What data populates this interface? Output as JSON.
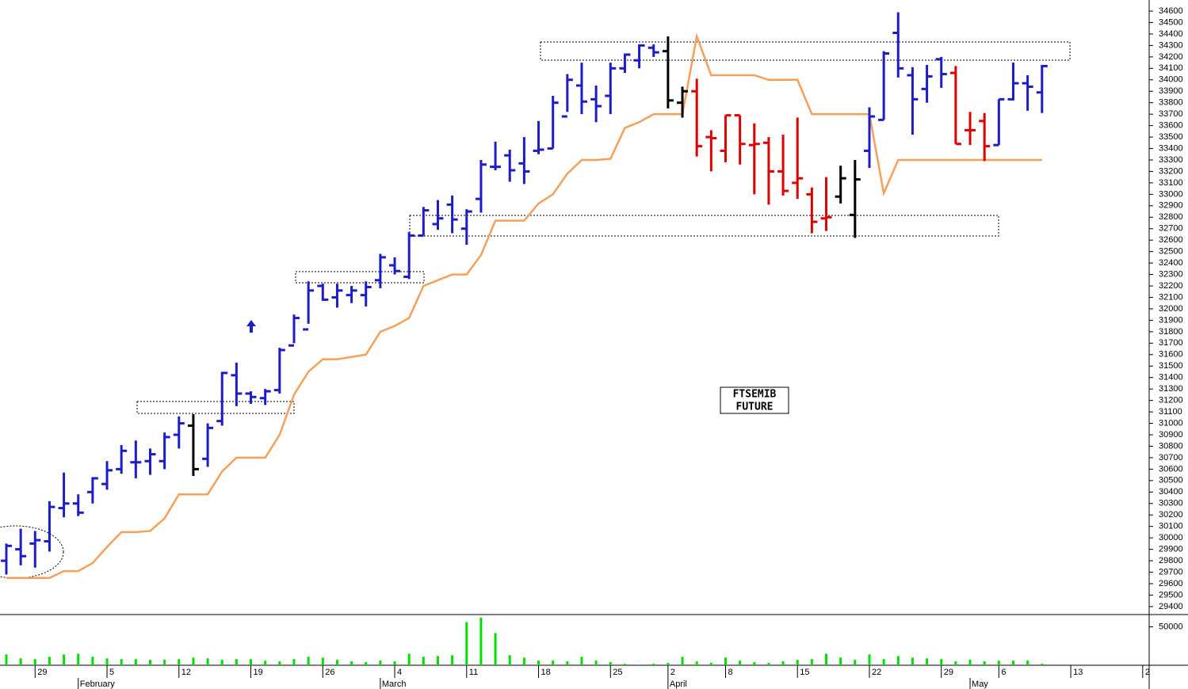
{
  "chart_data": [
    {
      "type": "ohlc",
      "title": "FTSEMIB",
      "subtitle": "FUTURE",
      "categories": [
        null,
        null,
        null,
        null,
        null,
        null,
        null,
        null,
        null,
        null,
        null,
        null,
        null,
        null,
        null,
        null,
        null,
        null,
        null,
        null,
        null,
        null,
        null,
        null,
        null,
        null,
        null,
        null,
        null,
        null,
        null,
        null,
        null,
        null,
        null,
        null,
        null,
        null,
        null,
        null,
        null,
        null,
        null,
        null,
        null,
        null,
        null,
        null,
        null,
        null,
        null,
        null,
        null,
        null,
        null,
        null,
        null,
        null,
        null,
        null,
        null,
        null,
        null,
        null,
        null,
        null,
        null,
        null,
        null,
        null,
        null,
        null,
        null
      ],
      "open": [
        29800,
        29900,
        29950,
        29970,
        30260,
        30300,
        30400,
        30470,
        30600,
        30660,
        30670,
        30670,
        30900,
        30980,
        30690,
        31020,
        31420,
        31260,
        31220,
        31290,
        31680,
        31820,
        32200,
        32100,
        32120,
        32120,
        32250,
        32380,
        32280,
        32640,
        32740,
        32910,
        32700,
        32960,
        33240,
        33340,
        33270,
        33380,
        33400,
        33680,
        33950,
        33830,
        33860,
        34100,
        34170,
        34280,
        34250,
        33800,
        33900,
        33500,
        33380,
        33690,
        33430,
        33450,
        33200,
        33100,
        33000,
        32790,
        32980,
        32820,
        33380,
        33650,
        34410,
        34040,
        33920,
        34180,
        34060,
        33560,
        33640,
        33430,
        33830,
        33970,
        33890
      ],
      "high": [
        29950,
        30080,
        30060,
        30320,
        30570,
        30380,
        30530,
        30670,
        30810,
        30850,
        30780,
        30920,
        31060,
        31080,
        31000,
        31450,
        31530,
        31280,
        31300,
        31660,
        31950,
        32240,
        32220,
        32220,
        32200,
        32240,
        32480,
        32450,
        32670,
        32890,
        32950,
        32990,
        32870,
        33300,
        33460,
        33390,
        33500,
        33640,
        33860,
        34050,
        34150,
        33950,
        34150,
        34230,
        34310,
        34310,
        34380,
        33940,
        34010,
        33560,
        33690,
        33690,
        33620,
        33500,
        33520,
        33670,
        33060,
        33150,
        33250,
        33300,
        33760,
        34250,
        34590,
        34110,
        34130,
        34200,
        34120,
        33720,
        33710,
        33830,
        34150,
        34040,
        34130
      ],
      "low": [
        29680,
        29760,
        29740,
        29880,
        30180,
        30190,
        30300,
        30420,
        30560,
        30520,
        30550,
        30600,
        30780,
        30540,
        30620,
        30980,
        31150,
        31170,
        31160,
        31260,
        31700,
        31870,
        32070,
        32010,
        32050,
        32020,
        32180,
        32300,
        32260,
        32640,
        32690,
        32660,
        32560,
        32840,
        33210,
        33110,
        33090,
        33350,
        33400,
        33720,
        33700,
        33630,
        33700,
        34060,
        34100,
        34200,
        33750,
        33670,
        33330,
        33200,
        33280,
        33260,
        33000,
        32910,
        32990,
        32960,
        32660,
        32680,
        32920,
        32620,
        33230,
        33650,
        34020,
        33520,
        33800,
        33930,
        33440,
        33430,
        33290,
        33430,
        33820,
        33730,
        33710
      ],
      "close": [
        29930,
        29840,
        29980,
        30270,
        30300,
        30220,
        30520,
        30590,
        30760,
        30660,
        30730,
        30880,
        31000,
        30600,
        30960,
        31440,
        31260,
        31230,
        31280,
        31640,
        31920,
        32160,
        32080,
        32160,
        32160,
        32190,
        32450,
        32330,
        32640,
        32860,
        32790,
        32780,
        32850,
        33260,
        33240,
        33210,
        33200,
        33390,
        33800,
        34000,
        33810,
        33770,
        34100,
        34220,
        34300,
        34240,
        33820,
        33900,
        33420,
        33490,
        33690,
        33440,
        33440,
        33200,
        33030,
        33140,
        32760,
        32800,
        33140,
        33130,
        33680,
        34230,
        34100,
        33830,
        34030,
        34050,
        33440,
        33560,
        33420,
        33830,
        33970,
        33940,
        34120
      ],
      "colors": [
        "#1c1cc8",
        "#1c1cc8",
        "#1c1cc8",
        "#1c1cc8",
        "#1c1cc8",
        "#1c1cc8",
        "#1c1cc8",
        "#1c1cc8",
        "#1c1cc8",
        "#1c1cc8",
        "#1c1cc8",
        "#1c1cc8",
        "#1c1cc8",
        "#000000",
        "#1c1cc8",
        "#1c1cc8",
        "#1c1cc8",
        "#1c1cc8",
        "#1c1cc8",
        "#1c1cc8",
        "#1c1cc8",
        "#1c1cc8",
        "#1c1cc8",
        "#1c1cc8",
        "#1c1cc8",
        "#1c1cc8",
        "#1c1cc8",
        "#1c1cc8",
        "#1c1cc8",
        "#1c1cc8",
        "#1c1cc8",
        "#1c1cc8",
        "#1c1cc8",
        "#1c1cc8",
        "#1c1cc8",
        "#1c1cc8",
        "#1c1cc8",
        "#1c1cc8",
        "#1c1cc8",
        "#1c1cc8",
        "#1c1cc8",
        "#1c1cc8",
        "#1c1cc8",
        "#1c1cc8",
        "#1c1cc8",
        "#1c1cc8",
        "#000000",
        "#000000",
        "#e00000",
        "#e00000",
        "#e00000",
        "#e00000",
        "#e00000",
        "#e00000",
        "#e00000",
        "#e00000",
        "#e00000",
        "#e00000",
        "#000000",
        "#000000",
        "#1c1cc8",
        "#1c1cc8",
        "#1c1cc8",
        "#1c1cc8",
        "#1c1cc8",
        "#1c1cc8",
        "#e00000",
        "#e00000",
        "#e00000",
        "#1c1cc8",
        "#1c1cc8",
        "#1c1cc8",
        "#1c1cc8"
      ],
      "line": {
        "color": "#f5a05a",
        "values": [
          29650,
          29650,
          29650,
          29650,
          29710,
          29710,
          29780,
          29920,
          30050,
          30050,
          30060,
          30170,
          30380,
          30380,
          30380,
          30580,
          30700,
          30700,
          30700,
          30900,
          31250,
          31450,
          31560,
          31560,
          31580,
          31600,
          31800,
          31850,
          31920,
          32200,
          32250,
          32300,
          32300,
          32470,
          32770,
          32770,
          32770,
          32920,
          33000,
          33180,
          33300,
          33300,
          33310,
          33580,
          33630,
          33700,
          33700,
          33700,
          34380,
          34040,
          34040,
          34040,
          34040,
          34000,
          34000,
          34000,
          33700,
          33700,
          33700,
          33700,
          33700,
          33010,
          33300,
          33300,
          33300,
          33300,
          33300,
          33300,
          33300,
          33300,
          33300,
          33300,
          33300
        ]
      },
      "xlim": [
        -0.44,
        79.45
      ],
      "ylim": [
        29337,
        34697
      ],
      "yticks": [
        29400,
        29500,
        29600,
        29700,
        29800,
        29900,
        30000,
        30100,
        30200,
        30300,
        30400,
        30500,
        30600,
        30700,
        30800,
        30900,
        31000,
        31100,
        31200,
        31300,
        31400,
        31500,
        31600,
        31700,
        31800,
        31900,
        32000,
        32100,
        32200,
        32300,
        32400,
        32500,
        32600,
        32700,
        32800,
        32900,
        33000,
        33100,
        33200,
        33300,
        33400,
        33500,
        33600,
        33700,
        33800,
        33900,
        34000,
        34100,
        34200,
        34300,
        34400,
        34500,
        34600
      ]
    },
    {
      "type": "bar",
      "color": "#00e000",
      "values": [
        14000,
        9000,
        8000,
        11000,
        14000,
        15000,
        11000,
        9000,
        8000,
        8000,
        7000,
        7000,
        8000,
        10000,
        9000,
        7000,
        8000,
        8000,
        6000,
        5000,
        8000,
        11000,
        10000,
        7000,
        5000,
        4000,
        6000,
        5000,
        15000,
        11000,
        12000,
        13000,
        56000,
        62000,
        42000,
        13000,
        10000,
        6000,
        6000,
        5000,
        11000,
        6000,
        4000,
        2000,
        1000,
        2000,
        3000,
        11000,
        5000,
        3000,
        10000,
        6000,
        4000,
        3000,
        5000,
        7000,
        8000,
        15000,
        10000,
        7000,
        14000,
        8000,
        12000,
        10000,
        9000,
        8000,
        5000,
        7000,
        5000,
        6000,
        6000,
        6000,
        2000
      ],
      "ylim": [
        0,
        65000
      ],
      "yticks": [
        50000
      ],
      "xticks": [
        {
          "value": 2,
          "label": "29"
        },
        {
          "value": 7,
          "label": "5"
        },
        {
          "value": 12,
          "label": "12"
        },
        {
          "value": 17,
          "label": "19"
        },
        {
          "value": 22,
          "label": "26"
        },
        {
          "value": 27,
          "label": "4"
        },
        {
          "value": 32,
          "label": "11"
        },
        {
          "value": 37,
          "label": "18"
        },
        {
          "value": 42,
          "label": "25"
        },
        {
          "value": 46,
          "label": "2"
        },
        {
          "value": 50,
          "label": "8"
        },
        {
          "value": 55,
          "label": "15"
        },
        {
          "value": 60,
          "label": "22"
        },
        {
          "value": 65,
          "label": "29"
        },
        {
          "value": 69,
          "label": "6"
        },
        {
          "value": 74,
          "label": "13"
        },
        {
          "value": 79,
          "label": "2"
        }
      ],
      "month_ticks": [
        {
          "value": 5,
          "label": "February"
        },
        {
          "value": 26,
          "label": "March"
        },
        {
          "value": 46,
          "label": "April"
        },
        {
          "value": 67,
          "label": "May"
        }
      ]
    }
  ]
}
